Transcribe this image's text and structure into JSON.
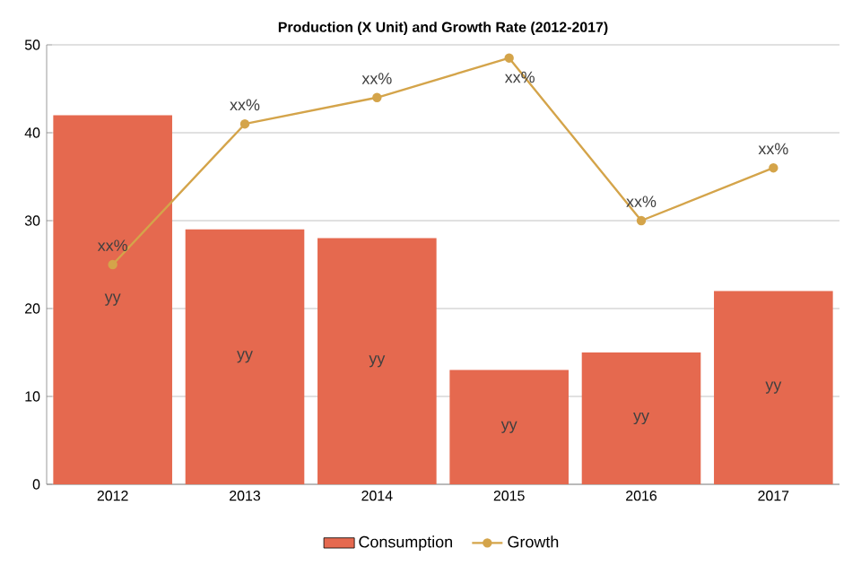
{
  "chart_data": {
    "type": "bar",
    "title": "Production (X Unit) and Growth Rate (2012-2017)",
    "categories": [
      "2012",
      "2013",
      "2014",
      "2015",
      "2016",
      "2017"
    ],
    "series": [
      {
        "name": "Consumption",
        "color": "#e5694f",
        "values": [
          42,
          29,
          28,
          13,
          15,
          22
        ],
        "value_labels": [
          "yy",
          "yy",
          "yy",
          "yy",
          "yy",
          "yy"
        ]
      },
      {
        "name": "Growth",
        "type": "line",
        "color": "#d4a44a",
        "values": [
          25,
          41,
          44,
          48.5,
          30,
          36
        ],
        "value_labels": [
          "xx%",
          "xx%",
          "xx%",
          "xx%",
          "xx%",
          "xx%"
        ],
        "marker": "circle",
        "line_style": "solid"
      }
    ],
    "ylim": [
      0,
      50
    ],
    "yticks": [
      0,
      10,
      20,
      30,
      40,
      50
    ],
    "grid": "y",
    "legend": "bottom"
  }
}
